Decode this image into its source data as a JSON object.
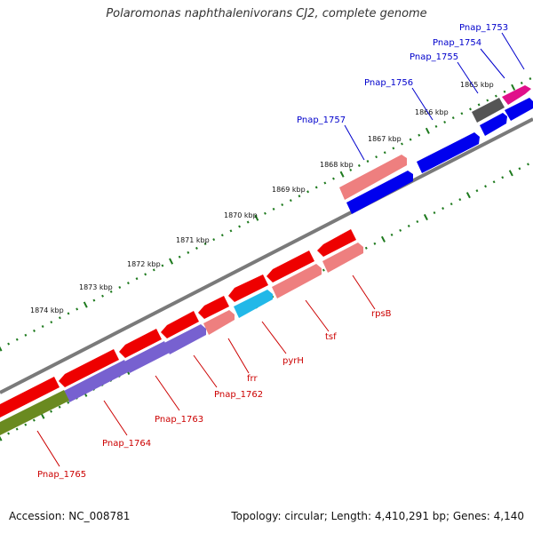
{
  "title": "Polaromonas naphthalenivorans CJ2, complete genome",
  "footer": {
    "accession": "Accession: NC_008781",
    "summary": "Topology: circular; Length: 4,410,291 bp; Genes: 4,140"
  },
  "colors": {
    "backbone": "#7a7a7a",
    "tick": "#1e7a1e",
    "upper_label": "#0000cc",
    "lower_label": "#cc0000"
  },
  "kbp_labels": [
    "1865 kbp",
    "1866 kbp",
    "1867 kbp",
    "1868 kbp",
    "1869 kbp",
    "1870 kbp",
    "1871 kbp",
    "1872 kbp",
    "1873 kbp",
    "1874 kbp"
  ],
  "upper_genes": [
    "Pnap_1753",
    "Pnap_1754",
    "Pnap_1755",
    "Pnap_1756",
    "Pnap_1757"
  ],
  "lower_genes": [
    "rpsB",
    "tsf",
    "pyrH",
    "frr",
    "Pnap_1762",
    "Pnap_1763",
    "Pnap_1764",
    "Pnap_1765"
  ]
}
